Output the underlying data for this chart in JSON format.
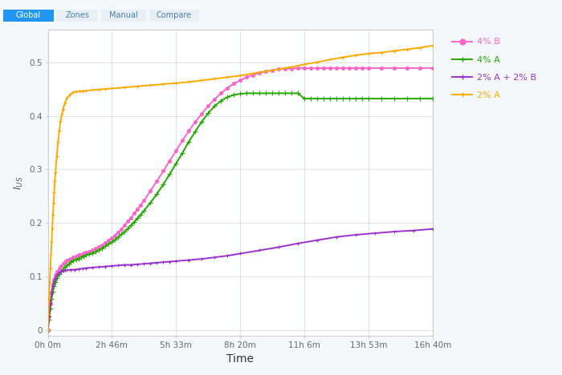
{
  "title": "",
  "xlabel": "Time",
  "ylabel": "IUS",
  "xlim": [
    0,
    60000
  ],
  "ylim": [
    -0.01,
    0.56
  ],
  "yticks": [
    0,
    0.1,
    0.2,
    0.3,
    0.4,
    0.5
  ],
  "xtick_labels": [
    "0h 0m",
    "2h 46m",
    "5h 33m",
    "8h 20m",
    "11h 6m",
    "13h 53m",
    "16h 40m"
  ],
  "xtick_positions": [
    0,
    9960,
    19920,
    30000,
    40000,
    50000,
    60000
  ],
  "background_color": "#f5f8fa",
  "plot_bg_color": "#ffffff",
  "grid_color": "#d8e4ec",
  "series": [
    {
      "label": "4% B",
      "color": "#ff66cc",
      "marker": "o",
      "markersize": 2.8,
      "linewidth": 1.4,
      "points_x": [
        0,
        200,
        400,
        600,
        800,
        1000,
        1200,
        1500,
        1800,
        2100,
        2400,
        2700,
        3000,
        3300,
        3600,
        4000,
        4400,
        4800,
        5200,
        5600,
        6000,
        6500,
        7000,
        7500,
        8000,
        8500,
        9000,
        9500,
        10000,
        10500,
        11000,
        11500,
        12000,
        12500,
        13000,
        13500,
        14000,
        14500,
        15000,
        16000,
        17000,
        18000,
        19000,
        20000,
        21000,
        22000,
        23000,
        24000,
        25000,
        26000,
        27000,
        28000,
        29000,
        30000,
        31000,
        32000,
        33000,
        34000,
        35000,
        36000,
        37000,
        38000,
        39000,
        40000,
        41000,
        42000,
        43000,
        44000,
        45000,
        46000,
        47000,
        48000,
        49000,
        50000,
        52000,
        54000,
        56000,
        58000,
        60000
      ],
      "points_y": [
        0,
        0.025,
        0.05,
        0.07,
        0.085,
        0.095,
        0.103,
        0.11,
        0.115,
        0.12,
        0.124,
        0.127,
        0.13,
        0.132,
        0.134,
        0.136,
        0.138,
        0.14,
        0.141,
        0.143,
        0.145,
        0.147,
        0.149,
        0.152,
        0.155,
        0.159,
        0.163,
        0.167,
        0.172,
        0.177,
        0.183,
        0.189,
        0.196,
        0.203,
        0.21,
        0.218,
        0.226,
        0.234,
        0.242,
        0.26,
        0.278,
        0.297,
        0.316,
        0.335,
        0.354,
        0.372,
        0.389,
        0.404,
        0.418,
        0.431,
        0.442,
        0.452,
        0.46,
        0.466,
        0.472,
        0.476,
        0.48,
        0.483,
        0.485,
        0.487,
        0.488,
        0.488,
        0.489,
        0.489,
        0.489,
        0.489,
        0.489,
        0.489,
        0.489,
        0.489,
        0.489,
        0.489,
        0.489,
        0.489,
        0.489,
        0.489,
        0.489,
        0.489,
        0.489
      ]
    },
    {
      "label": "4% A",
      "color": "#22aa00",
      "marker": "+",
      "markersize": 4,
      "linewidth": 1.4,
      "points_x": [
        0,
        200,
        400,
        600,
        800,
        1000,
        1200,
        1500,
        1800,
        2100,
        2400,
        2700,
        3000,
        3300,
        3600,
        4000,
        4400,
        4800,
        5200,
        5600,
        6000,
        6500,
        7000,
        7500,
        8000,
        8500,
        9000,
        9500,
        10000,
        10500,
        11000,
        11500,
        12000,
        12500,
        13000,
        13500,
        14000,
        14500,
        15000,
        16000,
        17000,
        18000,
        19000,
        20000,
        21000,
        22000,
        23000,
        24000,
        25000,
        26000,
        27000,
        28000,
        29000,
        30000,
        31000,
        32000,
        33000,
        34000,
        35000,
        36000,
        37000,
        38000,
        39000,
        40000,
        41000,
        42000,
        43000,
        44000,
        45000,
        46000,
        47000,
        48000,
        49000,
        50000,
        52000,
        54000,
        56000,
        58000,
        60000
      ],
      "points_y": [
        0,
        0.02,
        0.04,
        0.058,
        0.072,
        0.082,
        0.09,
        0.098,
        0.105,
        0.11,
        0.114,
        0.118,
        0.121,
        0.124,
        0.127,
        0.13,
        0.132,
        0.134,
        0.136,
        0.138,
        0.14,
        0.142,
        0.144,
        0.147,
        0.15,
        0.153,
        0.157,
        0.161,
        0.165,
        0.169,
        0.174,
        0.179,
        0.184,
        0.19,
        0.196,
        0.202,
        0.209,
        0.216,
        0.223,
        0.238,
        0.254,
        0.272,
        0.291,
        0.311,
        0.331,
        0.352,
        0.371,
        0.389,
        0.405,
        0.418,
        0.428,
        0.435,
        0.439,
        0.441,
        0.442,
        0.442,
        0.442,
        0.442,
        0.442,
        0.442,
        0.442,
        0.442,
        0.442,
        0.432,
        0.432,
        0.432,
        0.432,
        0.432,
        0.432,
        0.432,
        0.432,
        0.432,
        0.432,
        0.432,
        0.432,
        0.432,
        0.432,
        0.432,
        0.432
      ]
    },
    {
      "label": "2% A + 2% B",
      "color": "#9933cc",
      "marker": "+",
      "markersize": 3.5,
      "linewidth": 1.4,
      "points_x": [
        0,
        200,
        400,
        600,
        800,
        1000,
        1200,
        1500,
        1800,
        2100,
        2400,
        2700,
        3000,
        3600,
        4200,
        4800,
        5400,
        6000,
        7000,
        8000,
        9000,
        10000,
        11000,
        12000,
        13000,
        14000,
        15000,
        16000,
        17000,
        18000,
        19000,
        20000,
        22000,
        24000,
        26000,
        28000,
        30000,
        33000,
        36000,
        39000,
        42000,
        45000,
        48000,
        51000,
        54000,
        57000,
        60000
      ],
      "points_y": [
        0,
        0.025,
        0.05,
        0.07,
        0.083,
        0.092,
        0.098,
        0.104,
        0.108,
        0.11,
        0.111,
        0.112,
        0.112,
        0.113,
        0.113,
        0.114,
        0.115,
        0.116,
        0.117,
        0.118,
        0.119,
        0.12,
        0.121,
        0.122,
        0.122,
        0.123,
        0.124,
        0.125,
        0.126,
        0.127,
        0.128,
        0.129,
        0.131,
        0.133,
        0.136,
        0.139,
        0.143,
        0.149,
        0.155,
        0.162,
        0.168,
        0.174,
        0.178,
        0.181,
        0.184,
        0.186,
        0.189
      ]
    },
    {
      "label": "2% A",
      "color": "#ffaa00",
      "marker": "+",
      "markersize": 3.5,
      "linewidth": 1.4,
      "points_x": [
        0,
        100,
        200,
        300,
        400,
        500,
        600,
        700,
        800,
        900,
        1000,
        1100,
        1200,
        1400,
        1600,
        1800,
        2000,
        2200,
        2400,
        2700,
        3000,
        3500,
        4000,
        4500,
        5000,
        5500,
        6000,
        7000,
        8000,
        9000,
        10000,
        12000,
        14000,
        16000,
        18000,
        20000,
        22000,
        24000,
        26000,
        28000,
        30000,
        32000,
        34000,
        36000,
        38000,
        40000,
        42000,
        44000,
        46000,
        48000,
        50000,
        52000,
        54000,
        56000,
        58000,
        60000
      ],
      "points_y": [
        0,
        0.03,
        0.06,
        0.09,
        0.115,
        0.14,
        0.165,
        0.19,
        0.215,
        0.238,
        0.258,
        0.278,
        0.295,
        0.325,
        0.352,
        0.373,
        0.39,
        0.403,
        0.413,
        0.425,
        0.433,
        0.44,
        0.444,
        0.445,
        0.446,
        0.446,
        0.447,
        0.448,
        0.449,
        0.45,
        0.451,
        0.453,
        0.455,
        0.457,
        0.459,
        0.461,
        0.463,
        0.466,
        0.469,
        0.472,
        0.475,
        0.479,
        0.483,
        0.487,
        0.491,
        0.496,
        0.5,
        0.505,
        0.509,
        0.513,
        0.516,
        0.518,
        0.521,
        0.524,
        0.527,
        0.531
      ]
    }
  ],
  "legend_labels": [
    "4% B",
    "4% A",
    "2% A + 2% B",
    "2% A"
  ],
  "legend_colors": [
    "#ff66cc",
    "#22aa00",
    "#9933cc",
    "#ffaa00"
  ],
  "legend_markers": [
    "o",
    "+",
    "+",
    "+"
  ],
  "tab_labels": [
    "Global",
    "Zones",
    "Manual",
    "Compare"
  ],
  "tab_active": 0,
  "tab_active_color": "#2196f3",
  "tab_inactive_bg": "#e8f0f5",
  "tab_text_active": "#ffffff",
  "tab_text_inactive": "#4a7fa8"
}
